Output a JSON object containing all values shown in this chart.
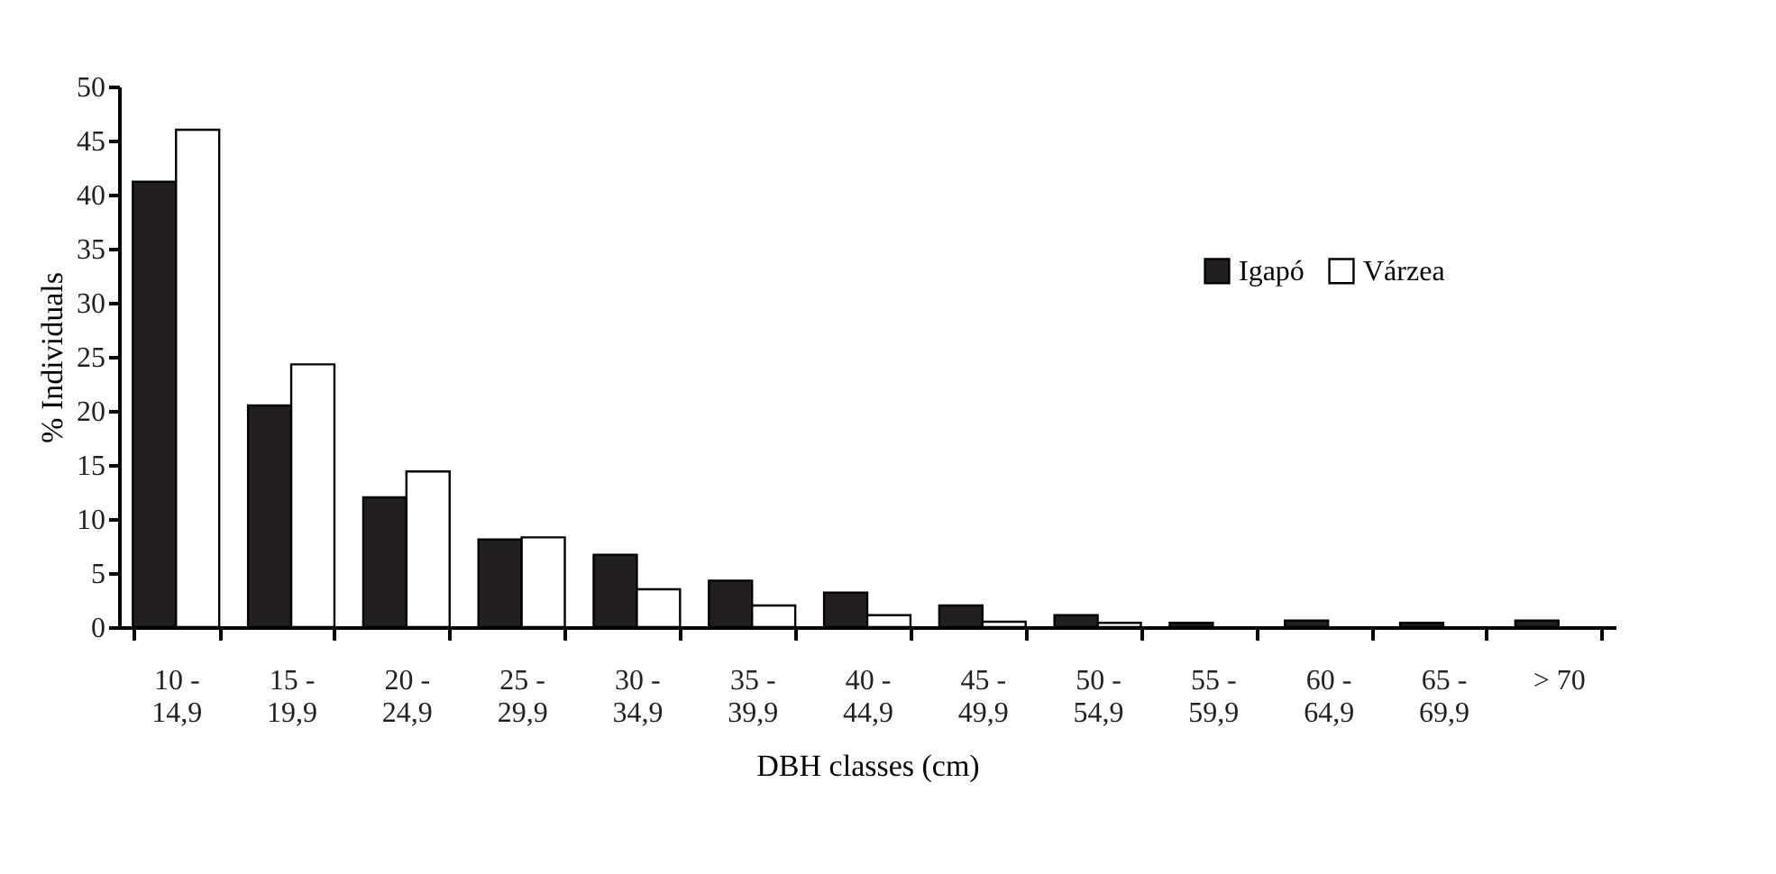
{
  "chart_data": {
    "type": "bar",
    "xlabel": "DBH classes (cm)",
    "ylabel": "% Individuals",
    "categories": [
      "10 - 14,9",
      "15 - 19,9",
      "20 - 24,9",
      "25 - 29,9",
      "30 - 34,9",
      "35 - 39,9",
      "40 - 44,9",
      "45 - 49,9",
      "50 - 54,9",
      "55 - 59,9",
      "60 - 64,9",
      "65 - 69,9",
      "> 70"
    ],
    "series": [
      {
        "name": "Igapó",
        "color": "#231f20",
        "values": [
          41.2,
          20.5,
          12,
          8.1,
          6.7,
          4.3,
          3.2,
          2.0,
          1.1,
          0.4,
          0.6,
          0.4,
          0.6
        ]
      },
      {
        "name": "Várzea",
        "color": "#ffffff",
        "values": [
          46,
          24.3,
          14.4,
          8.3,
          3.5,
          2.0,
          1.1,
          0.5,
          0.4,
          null,
          null,
          null,
          null
        ]
      }
    ],
    "ylim": [
      0,
      50
    ],
    "yticks": [
      0,
      5,
      10,
      15,
      20,
      25,
      30,
      35,
      40,
      45,
      50
    ],
    "grid": false,
    "legend": "top right"
  }
}
